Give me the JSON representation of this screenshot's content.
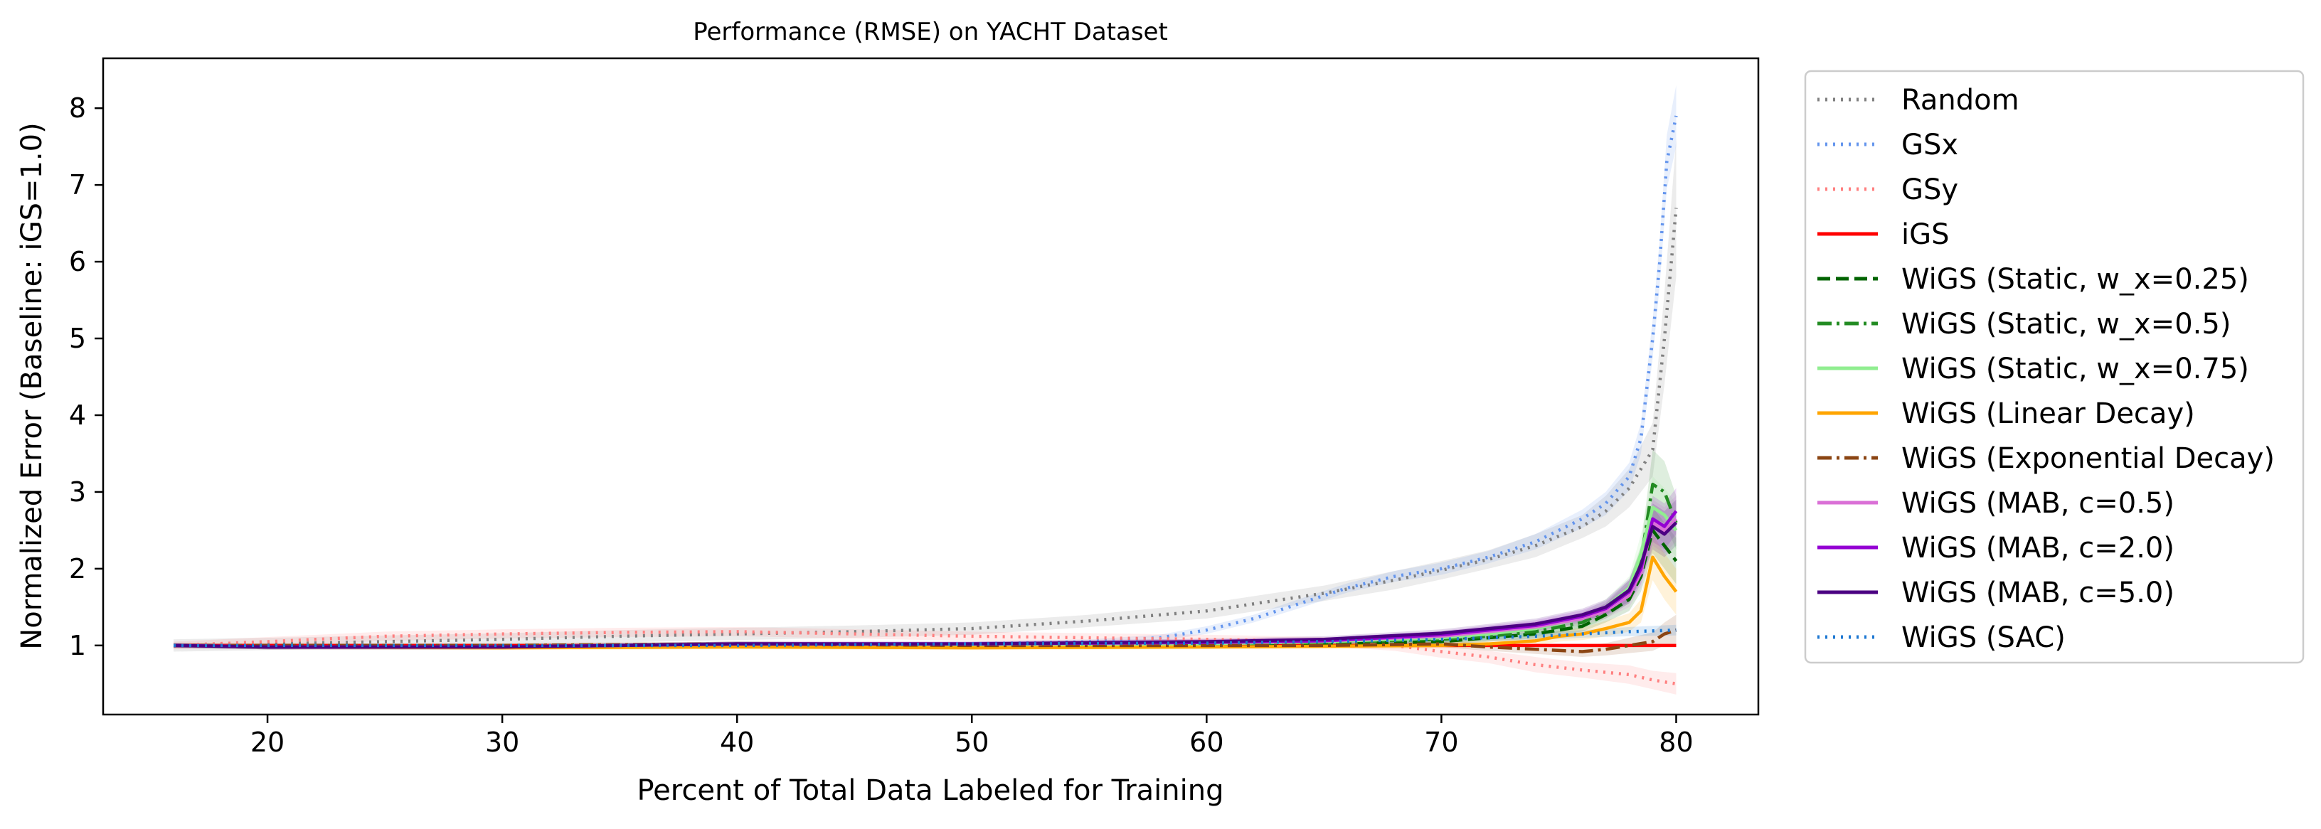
{
  "chart_data": {
    "type": "line",
    "title": "Performance (RMSE) on YACHT Dataset",
    "xlabel": "Percent of Total Data Labeled for Training",
    "ylabel": "Normalized Error (Baseline: iGS=1.0)",
    "xlim": [
      13,
      83.5
    ],
    "ylim": [
      0.1,
      8.65
    ],
    "xticks": [
      20,
      30,
      40,
      50,
      60,
      70,
      80
    ],
    "yticks": [
      1,
      2,
      3,
      4,
      5,
      6,
      7,
      8
    ],
    "grid": false,
    "legend_position": "outside-right",
    "series": [
      {
        "name": "Random",
        "color": "#808080",
        "dash": "dotted",
        "x": [
          16,
          20,
          25,
          30,
          35,
          40,
          45,
          50,
          55,
          60,
          65,
          68,
          70,
          72,
          74,
          76,
          77,
          78,
          79,
          79.5,
          80
        ],
        "y": [
          1.0,
          1.02,
          1.05,
          1.08,
          1.12,
          1.15,
          1.18,
          1.22,
          1.32,
          1.45,
          1.68,
          1.85,
          1.98,
          2.12,
          2.3,
          2.55,
          2.75,
          3.05,
          3.55,
          5.0,
          6.7
        ],
        "band": [
          0.08,
          0.08,
          0.08,
          0.08,
          0.08,
          0.08,
          0.08,
          0.08,
          0.08,
          0.1,
          0.1,
          0.12,
          0.12,
          0.12,
          0.15,
          0.15,
          0.2,
          0.25,
          0.35,
          0.6,
          0.9
        ]
      },
      {
        "name": "GSx",
        "color": "#6495ED",
        "dash": "dotted",
        "x": [
          16,
          20,
          30,
          40,
          50,
          55,
          58,
          60,
          62,
          64,
          66,
          68,
          70,
          72,
          74,
          76,
          77,
          78,
          78.5,
          79,
          79.3,
          79.6,
          80
        ],
        "y": [
          1.0,
          1.0,
          1.0,
          1.0,
          1.02,
          1.05,
          1.1,
          1.2,
          1.35,
          1.55,
          1.75,
          1.9,
          2.0,
          2.15,
          2.35,
          2.65,
          2.85,
          3.2,
          3.7,
          5.0,
          6.0,
          7.3,
          7.9
        ],
        "band": [
          0.02,
          0.02,
          0.02,
          0.02,
          0.03,
          0.03,
          0.04,
          0.05,
          0.05,
          0.06,
          0.06,
          0.07,
          0.08,
          0.08,
          0.1,
          0.12,
          0.15,
          0.18,
          0.2,
          0.25,
          0.3,
          0.35,
          0.4
        ]
      },
      {
        "name": "GSy",
        "color": "#FF7F7F",
        "dash": "dotted",
        "x": [
          16,
          20,
          25,
          30,
          35,
          40,
          45,
          50,
          55,
          60,
          65,
          68,
          70,
          72,
          74,
          76,
          78,
          79,
          80
        ],
        "y": [
          1.0,
          1.05,
          1.12,
          1.15,
          1.17,
          1.18,
          1.15,
          1.12,
          1.1,
          1.08,
          1.05,
          1.0,
          0.92,
          0.85,
          0.75,
          0.68,
          0.62,
          0.55,
          0.5
        ],
        "band": [
          0.05,
          0.06,
          0.06,
          0.06,
          0.06,
          0.06,
          0.06,
          0.06,
          0.06,
          0.06,
          0.06,
          0.07,
          0.08,
          0.08,
          0.1,
          0.1,
          0.12,
          0.12,
          0.14
        ]
      },
      {
        "name": "iGS",
        "color": "#FF0000",
        "dash": "solid",
        "x": [
          16,
          30,
          50,
          70,
          80
        ],
        "y": [
          1.0,
          1.0,
          1.0,
          1.0,
          1.0
        ]
      },
      {
        "name": "WiGS (Static, w_x=0.25)",
        "color": "#006400",
        "dash": "dashed",
        "x": [
          16,
          20,
          30,
          40,
          50,
          60,
          65,
          70,
          72,
          74,
          76,
          77,
          78,
          78.5,
          79,
          79.5,
          80
        ],
        "y": [
          1.0,
          0.98,
          0.98,
          1.02,
          1.0,
          1.0,
          1.02,
          1.05,
          1.1,
          1.15,
          1.25,
          1.4,
          1.6,
          1.9,
          2.5,
          2.3,
          2.1
        ],
        "band": [
          0.03,
          0.03,
          0.03,
          0.03,
          0.03,
          0.04,
          0.04,
          0.05,
          0.05,
          0.06,
          0.07,
          0.1,
          0.15,
          0.2,
          0.3,
          0.3,
          0.3
        ]
      },
      {
        "name": "WiGS (Static, w_x=0.5)",
        "color": "#228B22",
        "dash": "dashdot",
        "x": [
          16,
          20,
          30,
          40,
          50,
          60,
          65,
          70,
          72,
          74,
          76,
          77,
          78,
          78.5,
          79,
          79.5,
          80
        ],
        "y": [
          1.0,
          0.98,
          0.98,
          1.02,
          1.0,
          1.0,
          1.04,
          1.08,
          1.12,
          1.18,
          1.3,
          1.45,
          1.7,
          2.1,
          3.1,
          3.0,
          2.6
        ],
        "band": [
          0.03,
          0.03,
          0.03,
          0.03,
          0.03,
          0.04,
          0.04,
          0.05,
          0.05,
          0.06,
          0.08,
          0.1,
          0.15,
          0.2,
          0.45,
          0.4,
          0.35
        ]
      },
      {
        "name": "WiGS (Static, w_x=0.75)",
        "color": "#90EE90",
        "dash": "solid",
        "x": [
          16,
          20,
          30,
          40,
          50,
          60,
          65,
          70,
          72,
          74,
          76,
          77,
          78,
          78.5,
          79,
          79.5,
          80
        ],
        "y": [
          1.0,
          0.98,
          0.98,
          1.02,
          1.0,
          1.02,
          1.05,
          1.1,
          1.15,
          1.22,
          1.35,
          1.5,
          1.75,
          2.2,
          2.8,
          2.7,
          2.5
        ],
        "band": [
          0.03,
          0.03,
          0.03,
          0.03,
          0.03,
          0.04,
          0.04,
          0.05,
          0.06,
          0.07,
          0.08,
          0.1,
          0.15,
          0.25,
          0.4,
          0.35,
          0.35
        ]
      },
      {
        "name": "WiGS (Linear Decay)",
        "color": "#FFA500",
        "dash": "solid",
        "x": [
          16,
          20,
          30,
          40,
          50,
          60,
          65,
          70,
          72,
          74,
          75,
          76,
          77,
          78,
          78.5,
          79,
          79.5,
          80
        ],
        "y": [
          1.0,
          0.98,
          0.97,
          0.98,
          0.97,
          0.98,
          0.99,
          1.0,
          1.02,
          1.06,
          1.12,
          1.15,
          1.22,
          1.3,
          1.45,
          2.15,
          1.9,
          1.7
        ],
        "band": [
          0.03,
          0.03,
          0.03,
          0.03,
          0.03,
          0.03,
          0.04,
          0.04,
          0.05,
          0.06,
          0.07,
          0.08,
          0.1,
          0.12,
          0.15,
          0.3,
          0.3,
          0.3
        ]
      },
      {
        "name": "WiGS (Exponential Decay)",
        "color": "#8B4513",
        "dash": "dashdot",
        "x": [
          16,
          20,
          30,
          40,
          50,
          60,
          65,
          70,
          72,
          74,
          76,
          77,
          78,
          79,
          79.5,
          80
        ],
        "y": [
          1.0,
          1.0,
          1.0,
          1.02,
          1.0,
          1.0,
          1.0,
          1.02,
          0.98,
          0.95,
          0.92,
          0.95,
          1.0,
          1.05,
          1.15,
          1.2
        ],
        "band": [
          0.03,
          0.03,
          0.03,
          0.03,
          0.03,
          0.03,
          0.03,
          0.04,
          0.05,
          0.06,
          0.07,
          0.08,
          0.1,
          0.12,
          0.15,
          0.2
        ]
      },
      {
        "name": "WiGS (MAB, c=0.5)",
        "color": "#DA70D6",
        "dash": "solid",
        "x": [
          16,
          20,
          30,
          40,
          50,
          60,
          65,
          70,
          72,
          74,
          76,
          77,
          78,
          78.5,
          79,
          79.5,
          80
        ],
        "y": [
          1.0,
          0.98,
          0.98,
          1.02,
          1.02,
          1.04,
          1.06,
          1.12,
          1.18,
          1.24,
          1.35,
          1.45,
          1.65,
          1.95,
          2.6,
          2.5,
          2.65
        ],
        "band": [
          0.03,
          0.03,
          0.03,
          0.03,
          0.03,
          0.04,
          0.04,
          0.05,
          0.06,
          0.07,
          0.08,
          0.1,
          0.15,
          0.2,
          0.3,
          0.3,
          0.3
        ]
      },
      {
        "name": "WiGS (MAB, c=2.0)",
        "color": "#9400D3",
        "dash": "solid",
        "x": [
          16,
          20,
          30,
          40,
          50,
          60,
          65,
          70,
          72,
          74,
          76,
          77,
          78,
          78.5,
          79,
          79.5,
          80
        ],
        "y": [
          1.0,
          0.98,
          0.98,
          1.02,
          1.02,
          1.04,
          1.06,
          1.14,
          1.2,
          1.26,
          1.38,
          1.48,
          1.7,
          2.0,
          2.65,
          2.55,
          2.75
        ],
        "band": [
          0.03,
          0.03,
          0.03,
          0.03,
          0.03,
          0.04,
          0.04,
          0.05,
          0.06,
          0.07,
          0.08,
          0.1,
          0.15,
          0.2,
          0.3,
          0.3,
          0.3
        ]
      },
      {
        "name": "WiGS (MAB, c=5.0)",
        "color": "#4B0082",
        "dash": "solid",
        "x": [
          16,
          20,
          30,
          40,
          50,
          60,
          65,
          70,
          72,
          74,
          76,
          77,
          78,
          78.5,
          79,
          79.5,
          80
        ],
        "y": [
          1.0,
          0.98,
          0.98,
          1.02,
          1.02,
          1.05,
          1.08,
          1.16,
          1.22,
          1.28,
          1.4,
          1.5,
          1.72,
          2.05,
          2.55,
          2.45,
          2.6
        ],
        "band": [
          0.03,
          0.03,
          0.03,
          0.03,
          0.03,
          0.04,
          0.04,
          0.05,
          0.06,
          0.07,
          0.08,
          0.1,
          0.15,
          0.2,
          0.3,
          0.3,
          0.3
        ]
      },
      {
        "name": "WiGS (SAC)",
        "color": "#1E78D2",
        "dash": "dotted",
        "x": [
          16,
          20,
          30,
          40,
          50,
          60,
          65,
          70,
          72,
          74,
          76,
          78,
          80
        ],
        "y": [
          1.0,
          1.0,
          1.0,
          1.0,
          1.02,
          1.03,
          1.05,
          1.08,
          1.1,
          1.12,
          1.15,
          1.18,
          1.2
        ],
        "band": [
          0.02,
          0.02,
          0.02,
          0.02,
          0.02,
          0.03,
          0.03,
          0.04,
          0.04,
          0.05,
          0.05,
          0.06,
          0.07
        ]
      }
    ]
  }
}
